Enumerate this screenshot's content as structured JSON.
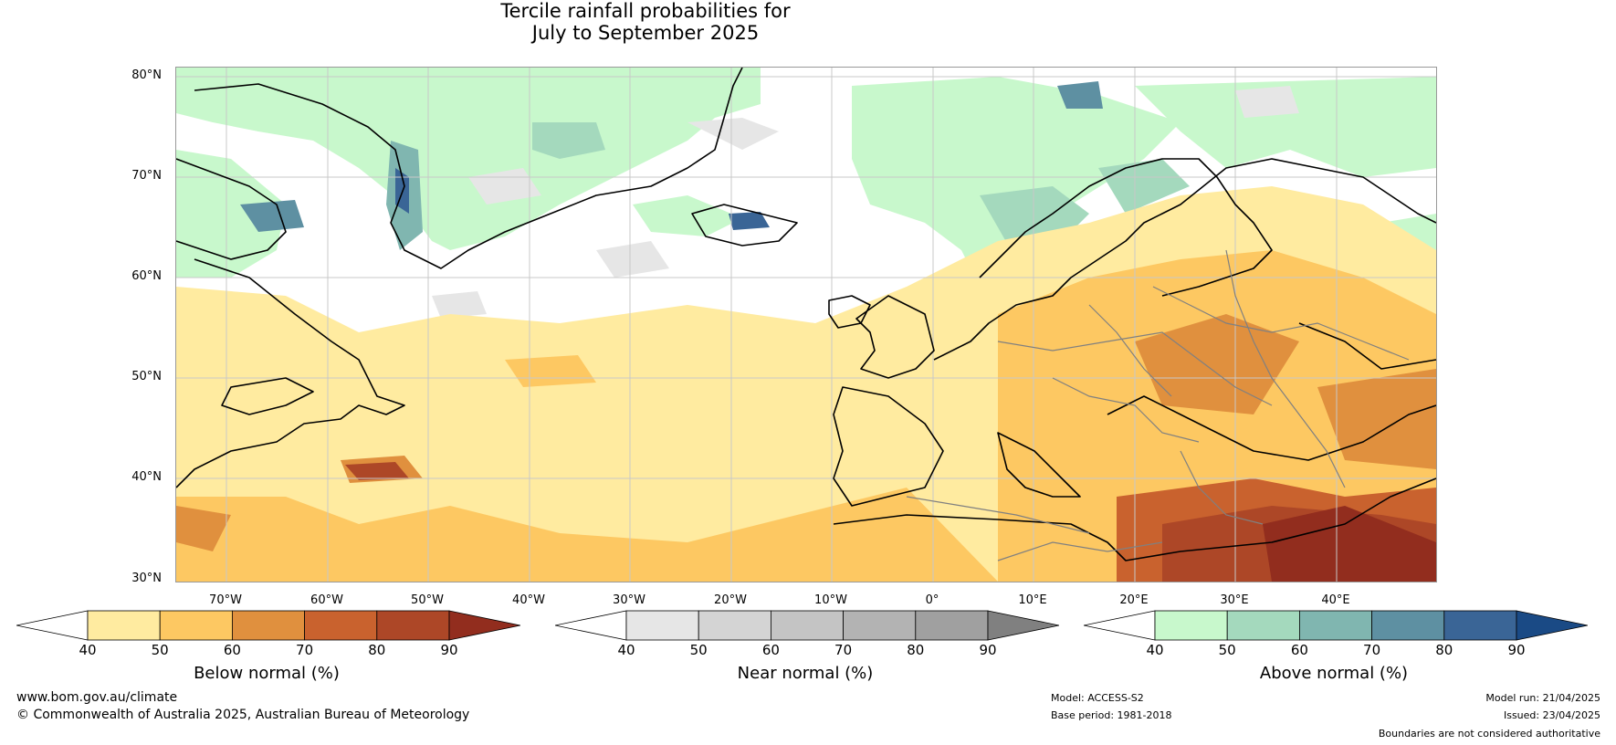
{
  "title_line1": "Tercile rainfall probabilities for",
  "title_line2": "July to September 2025",
  "lat_labels": [
    "80°N",
    "70°N",
    "60°N",
    "50°N",
    "40°N",
    "30°N"
  ],
  "lon_labels": [
    "70°W",
    "60°W",
    "50°W",
    "40°W",
    "30°W",
    "20°W",
    "10°W",
    "0°",
    "10°E",
    "20°E",
    "30°E",
    "40°E"
  ],
  "legends": [
    {
      "title": "Below normal (%)",
      "ticks": [
        "40",
        "50",
        "60",
        "70",
        "80",
        "90"
      ],
      "colors": [
        "#ffffff",
        "#ffeba0",
        "#fdc862",
        "#e0903e",
        "#c9622e",
        "#ad4727",
        "#922d1e"
      ]
    },
    {
      "title": "Near normal (%)",
      "ticks": [
        "40",
        "50",
        "60",
        "70",
        "80",
        "90"
      ],
      "colors": [
        "#ffffff",
        "#e6e6e6",
        "#d4d4d4",
        "#c4c4c4",
        "#b3b3b3",
        "#a0a0a0",
        "#808080"
      ]
    },
    {
      "title": "Above normal (%)",
      "ticks": [
        "40",
        "50",
        "60",
        "70",
        "80",
        "90"
      ],
      "colors": [
        "#ffffff",
        "#c8f8cc",
        "#a4d9bd",
        "#80b6b0",
        "#5e90a2",
        "#3a6596",
        "#1a4a85"
      ]
    }
  ],
  "footer": {
    "website": "www.bom.gov.au/climate",
    "copyright": "© Commonwealth of Australia 2025, Australian Bureau of Meteorology",
    "model": "Model: ACCESS-S2",
    "base_period": "Base period: 1981-2018",
    "model_run": "Model run: 21/04/2025",
    "issued": "Issued: 23/04/2025",
    "disclaimer": "Boundaries are not considered authoritative"
  },
  "map_colors": {
    "land_line": "#000000",
    "border_line": "#808080",
    "grid": "#c8c8c8"
  }
}
